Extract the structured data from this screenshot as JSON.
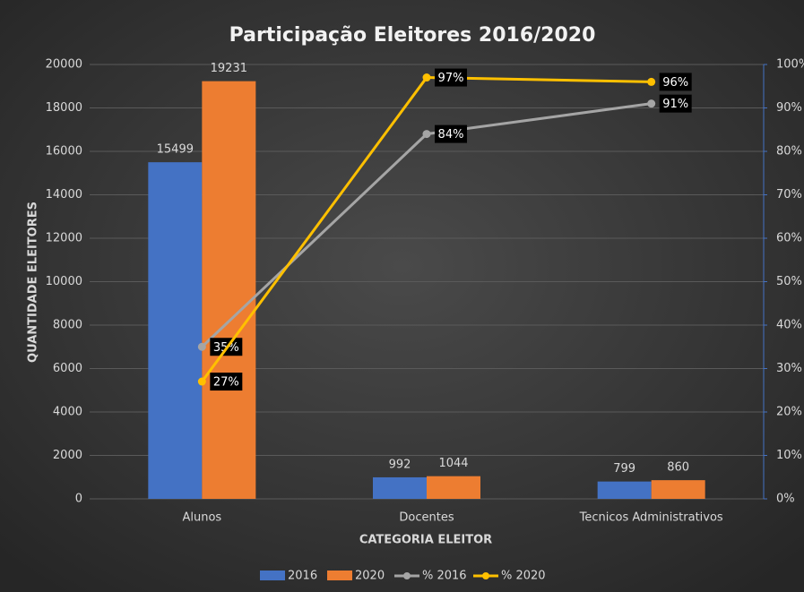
{
  "chart_data": {
    "type": "bar",
    "title": "Participação Eleitores 2016/2020",
    "x_label": "CATEGORIA ELEITOR",
    "y_label": "QUANTIDADE ELEITORES",
    "categories": [
      "Alunos",
      "Docentes",
      "Tecnicos Administrativos"
    ],
    "series": [
      {
        "name": "2016",
        "type": "bar",
        "color": "#4472c4",
        "values": [
          15499,
          992,
          799
        ]
      },
      {
        "name": "2020",
        "type": "bar",
        "color": "#ed7d31",
        "values": [
          19231,
          1044,
          860
        ]
      },
      {
        "name": "% 2016",
        "type": "line",
        "axis": "y2",
        "color": "#a5a5a5",
        "values": [
          35,
          84,
          91
        ],
        "value_labels": [
          "35%",
          "84%",
          "91%"
        ]
      },
      {
        "name": "% 2020",
        "type": "line",
        "axis": "y2",
        "color": "#ffc000",
        "values": [
          27,
          97,
          96
        ],
        "value_labels": [
          "27%",
          "97%",
          "96%"
        ]
      }
    ],
    "ylim": [
      0,
      20000
    ],
    "yticks": [
      0,
      2000,
      4000,
      6000,
      8000,
      10000,
      12000,
      14000,
      16000,
      18000,
      20000
    ],
    "y2lim": [
      0,
      100
    ],
    "y2ticks": [
      {
        "value": 0,
        "label": "0%"
      },
      {
        "value": 10,
        "label": "10%"
      },
      {
        "value": 20,
        "label": "20%"
      },
      {
        "value": 30,
        "label": "30%"
      },
      {
        "value": 40,
        "label": "40%"
      },
      {
        "value": 50,
        "label": "50%"
      },
      {
        "value": 60,
        "label": "60%"
      },
      {
        "value": 70,
        "label": "70%"
      },
      {
        "value": 80,
        "label": "80%"
      },
      {
        "value": 90,
        "label": "90%"
      },
      {
        "value": 100,
        "label": "100%"
      }
    ],
    "grid": true,
    "legend": "bottom"
  }
}
